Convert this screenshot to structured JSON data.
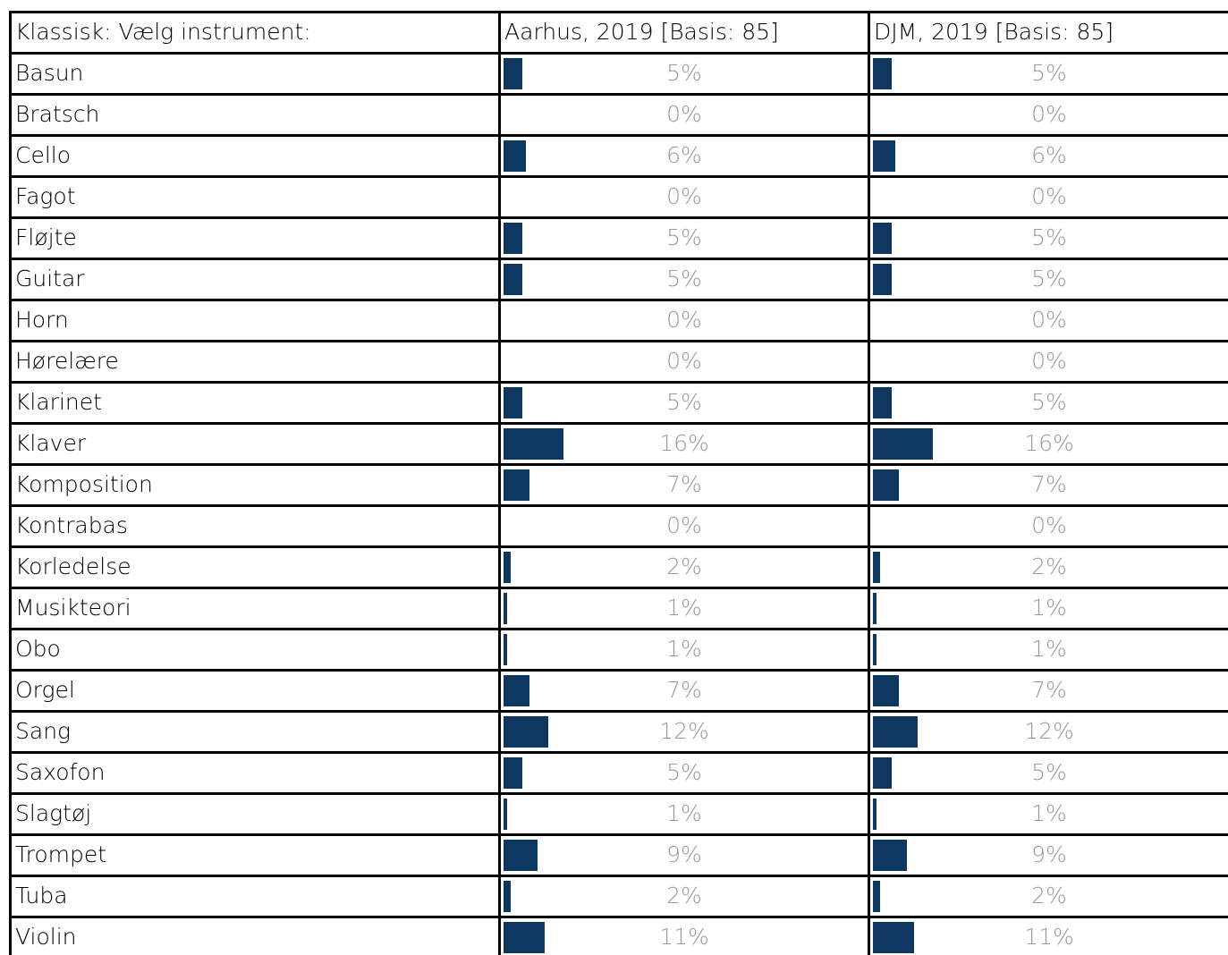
{
  "table": {
    "header": [
      "Klassisk: Vælg instrument:",
      "Aarhus, 2019 [Basis: 85]",
      "DJM, 2019 [Basis: 85]"
    ],
    "rows": [
      {
        "label": "Basun",
        "values": [
          5,
          5
        ],
        "value_labels": [
          "5%",
          "5%"
        ]
      },
      {
        "label": "Bratsch",
        "values": [
          0,
          0
        ],
        "value_labels": [
          "0%",
          "0%"
        ]
      },
      {
        "label": "Cello",
        "values": [
          6,
          6
        ],
        "value_labels": [
          "6%",
          "6%"
        ]
      },
      {
        "label": "Fagot",
        "values": [
          0,
          0
        ],
        "value_labels": [
          "0%",
          "0%"
        ]
      },
      {
        "label": "Fløjte",
        "values": [
          5,
          5
        ],
        "value_labels": [
          "5%",
          "5%"
        ]
      },
      {
        "label": "Guitar",
        "values": [
          5,
          5
        ],
        "value_labels": [
          "5%",
          "5%"
        ]
      },
      {
        "label": "Horn",
        "values": [
          0,
          0
        ],
        "value_labels": [
          "0%",
          "0%"
        ]
      },
      {
        "label": "Hørelære",
        "values": [
          0,
          0
        ],
        "value_labels": [
          "0%",
          "0%"
        ]
      },
      {
        "label": "Klarinet",
        "values": [
          5,
          5
        ],
        "value_labels": [
          "5%",
          "5%"
        ]
      },
      {
        "label": "Klaver",
        "values": [
          16,
          16
        ],
        "value_labels": [
          "16%",
          "16%"
        ]
      },
      {
        "label": "Komposition",
        "values": [
          7,
          7
        ],
        "value_labels": [
          "7%",
          "7%"
        ]
      },
      {
        "label": "Kontrabas",
        "values": [
          0,
          0
        ],
        "value_labels": [
          "0%",
          "0%"
        ]
      },
      {
        "label": "Korledelse",
        "values": [
          2,
          2
        ],
        "value_labels": [
          "2%",
          "2%"
        ]
      },
      {
        "label": "Musikteori",
        "values": [
          1,
          1
        ],
        "value_labels": [
          "1%",
          "1%"
        ]
      },
      {
        "label": "Obo",
        "values": [
          1,
          1
        ],
        "value_labels": [
          "1%",
          "1%"
        ]
      },
      {
        "label": "Orgel",
        "values": [
          7,
          7
        ],
        "value_labels": [
          "7%",
          "7%"
        ]
      },
      {
        "label": "Sang",
        "values": [
          12,
          12
        ],
        "value_labels": [
          "12%",
          "12%"
        ]
      },
      {
        "label": "Saxofon",
        "values": [
          5,
          5
        ],
        "value_labels": [
          "5%",
          "5%"
        ]
      },
      {
        "label": "Slagtøj",
        "values": [
          1,
          1
        ],
        "value_labels": [
          "1%",
          "1%"
        ]
      },
      {
        "label": "Trompet",
        "values": [
          9,
          9
        ],
        "value_labels": [
          "9%",
          "9%"
        ]
      },
      {
        "label": "Tuba",
        "values": [
          2,
          2
        ],
        "value_labels": [
          "2%",
          "2%"
        ]
      },
      {
        "label": "Violin",
        "values": [
          11,
          11
        ],
        "value_labels": [
          "11%",
          "11%"
        ]
      }
    ]
  }
}
